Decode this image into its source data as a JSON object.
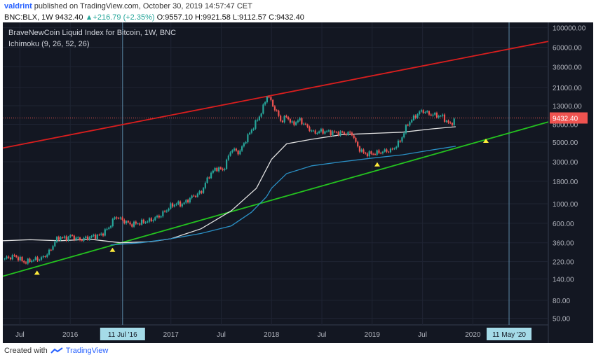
{
  "header": {
    "author": "valdrint",
    "published": "published on TradingView.com, October 30, 2019 14:57:47 CET",
    "symbol": "BNC:BLX, 1W",
    "last": "9432.40",
    "change": "+216.79 (+2.35%)",
    "open": "O:9557.10",
    "high": "H:9921.58",
    "low": "L:9112.57",
    "close": "C:9432.40"
  },
  "footer": {
    "created_with": "Created with",
    "brand": "TradingView"
  },
  "colors": {
    "background": "#131722",
    "up": "#26a69a",
    "down": "#ef5350",
    "resistance": "#d91e1e",
    "support": "#24c21f",
    "ichimoku_white": "#e0e0e0",
    "ichimoku_blue": "#2a8fc4"
  },
  "chart_data": {
    "type": "line",
    "scale": "log",
    "title": "BraveNewCoin Liquid Index for Bitcoin, 1W, BNC",
    "indicator": "Ichimoku (9, 26, 52, 26)",
    "last_price_label": "9432.40",
    "last_price": 9432.4,
    "y_ticks": [
      100000,
      60000,
      36000,
      21000,
      13000,
      8000,
      5000,
      3000,
      1800,
      1000,
      600,
      360,
      220,
      140,
      80,
      50
    ],
    "y_tick_labels": [
      "100000.00",
      "60000.00",
      "36000.00",
      "21000.00",
      "13000.00",
      "8000.00",
      "5000.00",
      "3000.00",
      "1800.00",
      "1000.00",
      "600.00",
      "360.00",
      "220.00",
      "140.00",
      "80.00",
      "50.00"
    ],
    "ylim": [
      42,
      115000
    ],
    "xlim": [
      2015.33,
      2020.75
    ],
    "x_ticks": [
      {
        "t": 2015.5,
        "label": "Jul"
      },
      {
        "t": 2016.0,
        "label": "2016"
      },
      {
        "t": 2016.5,
        "label": "Jul"
      },
      {
        "t": 2017.0,
        "label": "2017"
      },
      {
        "t": 2017.5,
        "label": "Jul"
      },
      {
        "t": 2018.0,
        "label": "2018"
      },
      {
        "t": 2018.5,
        "label": "Jul"
      },
      {
        "t": 2019.0,
        "label": "2019"
      },
      {
        "t": 2019.5,
        "label": "Jul"
      },
      {
        "t": 2020.0,
        "label": "2020"
      }
    ],
    "vertical_markers": [
      {
        "t": 2016.52,
        "label": "11 Jul '16"
      },
      {
        "t": 2020.36,
        "label": "11 May '20"
      }
    ],
    "price_path": [
      [
        2015.33,
        235
      ],
      [
        2015.45,
        255
      ],
      [
        2015.55,
        215
      ],
      [
        2015.62,
        230
      ],
      [
        2015.72,
        240
      ],
      [
        2015.8,
        290
      ],
      [
        2015.85,
        380
      ],
      [
        2015.9,
        420
      ],
      [
        2015.95,
        400
      ],
      [
        2016.0,
        430
      ],
      [
        2016.1,
        390
      ],
      [
        2016.2,
        420
      ],
      [
        2016.3,
        440
      ],
      [
        2016.38,
        530
      ],
      [
        2016.45,
        720
      ],
      [
        2016.52,
        650
      ],
      [
        2016.6,
        580
      ],
      [
        2016.7,
        610
      ],
      [
        2016.8,
        650
      ],
      [
        2016.9,
        740
      ],
      [
        2017.0,
        950
      ],
      [
        2017.05,
        1000
      ],
      [
        2017.12,
        990
      ],
      [
        2017.2,
        1180
      ],
      [
        2017.3,
        1350
      ],
      [
        2017.38,
        2100
      ],
      [
        2017.45,
        2550
      ],
      [
        2017.52,
        2400
      ],
      [
        2017.6,
        4200
      ],
      [
        2017.68,
        3800
      ],
      [
        2017.75,
        5500
      ],
      [
        2017.82,
        7500
      ],
      [
        2017.9,
        11000
      ],
      [
        2017.96,
        17500
      ],
      [
        2018.0,
        14000
      ],
      [
        2018.05,
        11000
      ],
      [
        2018.1,
        8500
      ],
      [
        2018.15,
        10000
      ],
      [
        2018.2,
        8000
      ],
      [
        2018.28,
        9000
      ],
      [
        2018.35,
        7500
      ],
      [
        2018.42,
        6400
      ],
      [
        2018.5,
        6700
      ],
      [
        2018.58,
        6500
      ],
      [
        2018.66,
        6400
      ],
      [
        2018.74,
        6300
      ],
      [
        2018.8,
        6300
      ],
      [
        2018.85,
        4500
      ],
      [
        2018.92,
        3700
      ],
      [
        2019.0,
        3700
      ],
      [
        2019.1,
        3900
      ],
      [
        2019.2,
        4100
      ],
      [
        2019.28,
        5200
      ],
      [
        2019.35,
        8000
      ],
      [
        2019.45,
        10500
      ],
      [
        2019.5,
        11500
      ],
      [
        2019.56,
        10500
      ],
      [
        2019.62,
        10200
      ],
      [
        2019.7,
        9800
      ],
      [
        2019.75,
        8300
      ],
      [
        2019.78,
        8000
      ],
      [
        2019.83,
        9432
      ]
    ],
    "ichimoku_white": [
      [
        2015.33,
        380
      ],
      [
        2015.6,
        390
      ],
      [
        2015.9,
        380
      ],
      [
        2016.2,
        395
      ],
      [
        2016.5,
        360
      ],
      [
        2016.8,
        370
      ],
      [
        2017.0,
        400
      ],
      [
        2017.3,
        520
      ],
      [
        2017.6,
        830
      ],
      [
        2017.85,
        1500
      ],
      [
        2018.0,
        3200
      ],
      [
        2018.15,
        4800
      ],
      [
        2018.4,
        5400
      ],
      [
        2018.7,
        6100
      ],
      [
        2019.0,
        6300
      ],
      [
        2019.3,
        6500
      ],
      [
        2019.6,
        7100
      ],
      [
        2019.83,
        7500
      ]
    ],
    "ichimoku_blue": [
      [
        2016.4,
        340
      ],
      [
        2016.7,
        360
      ],
      [
        2017.0,
        400
      ],
      [
        2017.3,
        460
      ],
      [
        2017.6,
        560
      ],
      [
        2017.8,
        800
      ],
      [
        2017.95,
        1200
      ],
      [
        2018.0,
        1500
      ],
      [
        2018.15,
        2200
      ],
      [
        2018.4,
        2700
      ],
      [
        2018.7,
        3000
      ],
      [
        2019.0,
        3300
      ],
      [
        2019.3,
        3600
      ],
      [
        2019.6,
        4100
      ],
      [
        2019.83,
        4500
      ]
    ],
    "red_trendline": [
      [
        2015.33,
        4300
      ],
      [
        2020.75,
        70000
      ]
    ],
    "green_trendline": [
      [
        2015.33,
        150
      ],
      [
        2020.75,
        8500
      ]
    ],
    "markers": [
      {
        "t": 2015.67,
        "price": 165
      },
      {
        "t": 2016.42,
        "price": 300
      },
      {
        "t": 2019.05,
        "price": 2800
      },
      {
        "t": 2020.13,
        "price": 5200
      }
    ]
  }
}
